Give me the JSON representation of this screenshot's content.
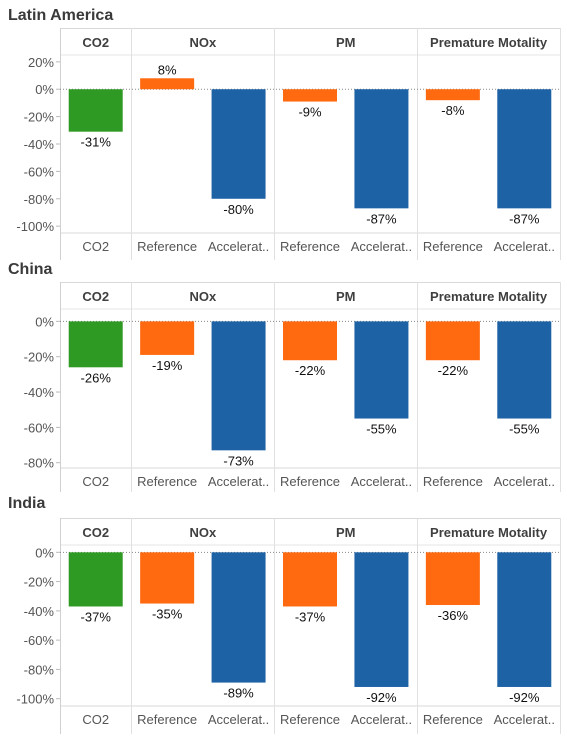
{
  "colors": {
    "co2": "#2f9a23",
    "reference": "#ff6a10",
    "accelerated": "#1e62a6"
  },
  "group_headers": [
    "CO2",
    "NOx",
    "PM",
    "Premature Motality"
  ],
  "category_labels": [
    "CO2",
    "Reference",
    "Accelerat..",
    "Reference",
    "Accelerat..",
    "Reference",
    "Accelerat.."
  ],
  "chart_data": [
    {
      "type": "bar",
      "title": "Latin America",
      "groups": [
        "CO2",
        "NOx",
        "PM",
        "Premature Motality"
      ],
      "categories": [
        "CO2",
        "Reference",
        "Accelerat..",
        "Reference",
        "Accelerat..",
        "Reference",
        "Accelerat.."
      ],
      "bar_groups": [
        "CO2",
        "NOx",
        "NOx",
        "PM",
        "PM",
        "Premature Motality",
        "Premature Motality"
      ],
      "bar_kind": [
        "co2",
        "reference",
        "accelerated",
        "reference",
        "accelerated",
        "reference",
        "accelerated"
      ],
      "values": [
        -31,
        8,
        -80,
        -9,
        -87,
        -8,
        -87
      ],
      "data_labels": [
        "-31%",
        "8%",
        "-80%",
        "-9%",
        "-87%",
        "-8%",
        "-87%"
      ],
      "ylim": [
        -105,
        25
      ],
      "yticks": [
        20,
        0,
        -20,
        -40,
        -60,
        -80,
        -100
      ],
      "ytick_labels": [
        "20%",
        "0%",
        "-20%",
        "-40%",
        "-60%",
        "-80%",
        "-100%"
      ]
    },
    {
      "type": "bar",
      "title": "China",
      "groups": [
        "CO2",
        "NOx",
        "PM",
        "Premature Motality"
      ],
      "categories": [
        "CO2",
        "Reference",
        "Accelerat..",
        "Reference",
        "Accelerat..",
        "Reference",
        "Accelerat.."
      ],
      "bar_groups": [
        "CO2",
        "NOx",
        "NOx",
        "PM",
        "PM",
        "Premature Motality",
        "Premature Motality"
      ],
      "bar_kind": [
        "co2",
        "reference",
        "accelerated",
        "reference",
        "accelerated",
        "reference",
        "accelerated"
      ],
      "values": [
        -26,
        -19,
        -73,
        -22,
        -55,
        -22,
        -55
      ],
      "data_labels": [
        "-26%",
        "-19%",
        "-73%",
        "-22%",
        "-55%",
        "-22%",
        "-55%"
      ],
      "ylim": [
        -83,
        7
      ],
      "yticks": [
        0,
        -20,
        -40,
        -60,
        -80
      ],
      "ytick_labels": [
        "0%",
        "-20%",
        "-40%",
        "-60%",
        "-80%"
      ]
    },
    {
      "type": "bar",
      "title": "India",
      "groups": [
        "CO2",
        "NOx",
        "PM",
        "Premature Motality"
      ],
      "categories": [
        "CO2",
        "Reference",
        "Accelerat..",
        "Reference",
        "Accelerat..",
        "Reference",
        "Accelerat.."
      ],
      "bar_groups": [
        "CO2",
        "NOx",
        "NOx",
        "PM",
        "PM",
        "Premature Motality",
        "Premature Motality"
      ],
      "bar_kind": [
        "co2",
        "reference",
        "accelerated",
        "reference",
        "accelerated",
        "reference",
        "accelerated"
      ],
      "values": [
        -37,
        -35,
        -89,
        -37,
        -92,
        -36,
        -92
      ],
      "data_labels": [
        "-37%",
        "-35%",
        "-89%",
        "-37%",
        "-92%",
        "-36%",
        "-92%"
      ],
      "ylim": [
        -105,
        5
      ],
      "yticks": [
        0,
        -20,
        -40,
        -60,
        -80,
        -100
      ],
      "ytick_labels": [
        "0%",
        "-20%",
        "-40%",
        "-60%",
        "-80%",
        "-100%"
      ]
    }
  ]
}
